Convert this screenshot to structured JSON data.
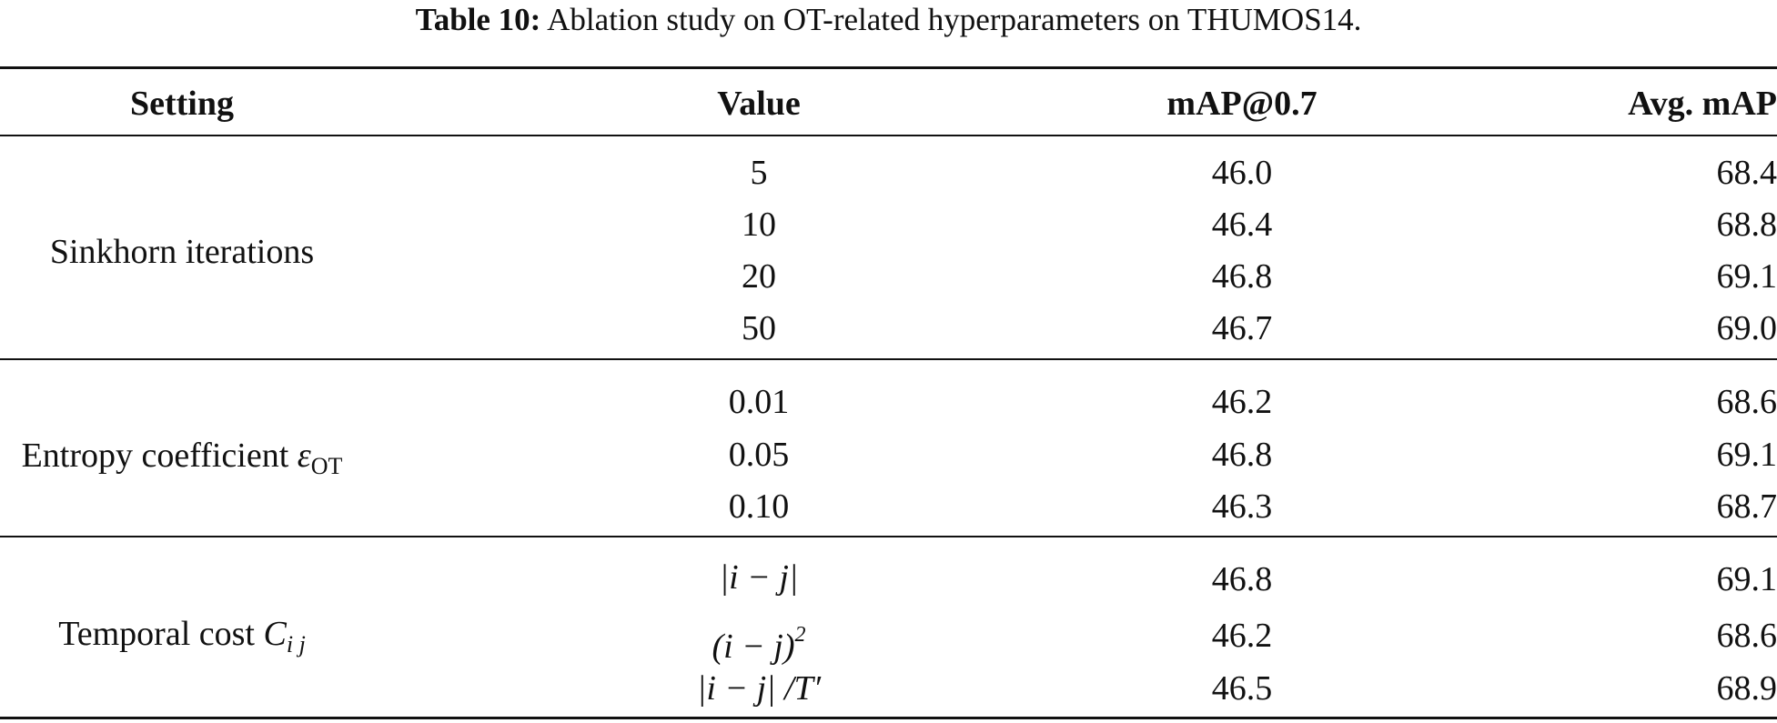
{
  "caption": {
    "label": "Table 10:",
    "text": "Ablation study on OT-related hyperparameters on THUMOS14."
  },
  "table": {
    "columns": [
      "Setting",
      "Value",
      "mAP@0.7",
      "Avg. mAP"
    ],
    "groups": [
      {
        "setting": "Sinkhorn iterations",
        "rows": [
          {
            "value": "5",
            "map07": "46.0",
            "avg": "68.4"
          },
          {
            "value": "10",
            "map07": "46.4",
            "avg": "68.8"
          },
          {
            "value": "20",
            "map07": "46.8",
            "avg": "69.1"
          },
          {
            "value": "50",
            "map07": "46.7",
            "avg": "69.0"
          }
        ]
      },
      {
        "setting": "Entropy coefficient ",
        "setting_symbol": "ε",
        "setting_sub": "OT",
        "rows": [
          {
            "value": "0.01",
            "map07": "46.2",
            "avg": "68.6"
          },
          {
            "value": "0.05",
            "map07": "46.8",
            "avg": "69.1"
          },
          {
            "value": "0.10",
            "map07": "46.3",
            "avg": "68.7"
          }
        ]
      },
      {
        "setting": "Temporal cost ",
        "setting_symbol": "C",
        "setting_sub": "i j",
        "rows": [
          {
            "value": "|i − j|",
            "map07": "46.8",
            "avg": "69.1"
          },
          {
            "value": "(i − j)",
            "value_sup": "2",
            "map07": "46.2",
            "avg": "68.6"
          },
          {
            "value": "|i − j| /T′",
            "map07": "46.5",
            "avg": "68.9"
          }
        ]
      }
    ]
  }
}
